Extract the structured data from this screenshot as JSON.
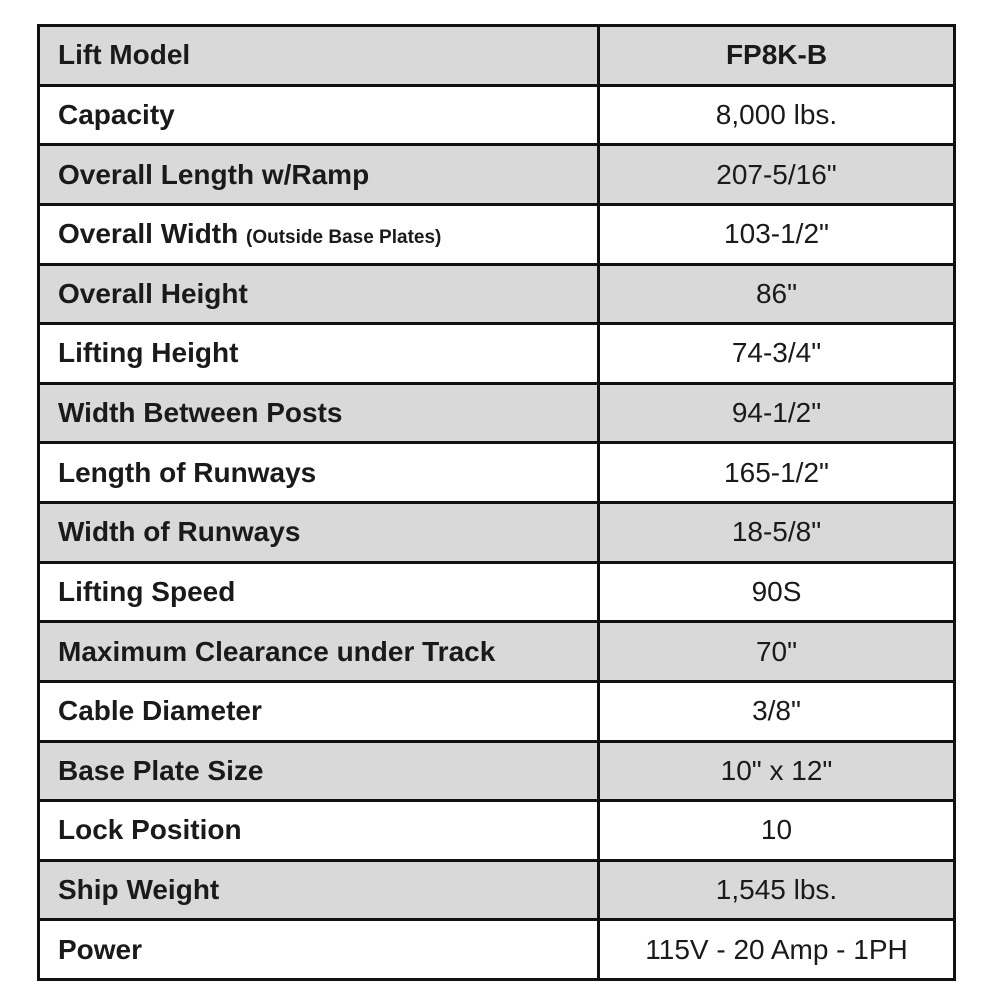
{
  "table": {
    "rows": [
      {
        "label": "Lift Model",
        "value": "FP8K-B"
      },
      {
        "label": "Capacity",
        "value": "8,000 lbs."
      },
      {
        "label": "Overall Length w/Ramp",
        "value": "207-5/16\""
      },
      {
        "label": "Overall Width",
        "note": "(Outside Base Plates)",
        "value": "103-1/2\""
      },
      {
        "label": "Overall Height",
        "value": "86\""
      },
      {
        "label": "Lifting Height",
        "value": "74-3/4\""
      },
      {
        "label": "Width Between Posts",
        "value": "94-1/2\""
      },
      {
        "label": "Length of Runways",
        "value": "165-1/2\""
      },
      {
        "label": "Width of Runways",
        "value": "18-5/8\""
      },
      {
        "label": "Lifting Speed",
        "value": "90S"
      },
      {
        "label": "Maximum Clearance under Track",
        "value": "70\""
      },
      {
        "label": "Cable Diameter",
        "value": "3/8\""
      },
      {
        "label": "Base Plate Size",
        "value": "10\" x 12\""
      },
      {
        "label": "Lock Position",
        "value": "10"
      },
      {
        "label": "Ship Weight",
        "value": "1,545 lbs."
      },
      {
        "label": "Power",
        "value": "115V - 20 Amp - 1PH"
      }
    ]
  }
}
